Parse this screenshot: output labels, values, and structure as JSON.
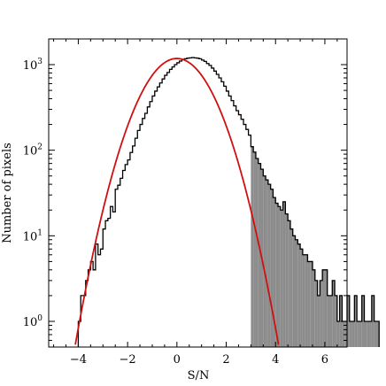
{
  "chart_data": {
    "type": "histogram",
    "xlabel": "S/N",
    "ylabel": "Number of pixels",
    "xlim": [
      -5.2,
      6.9
    ],
    "ylim_log10": [
      -0.3,
      3.3
    ],
    "yscale": "log",
    "x_ticks": [
      -4,
      -2,
      0,
      2,
      4,
      6
    ],
    "x_tick_labels": [
      "−4",
      "−2",
      "0",
      "2",
      "4",
      "6"
    ],
    "y_ticks": [
      {
        "base": "10",
        "exp": "0",
        "log10": 0
      },
      {
        "base": "10",
        "exp": "1",
        "log10": 1
      },
      {
        "base": "10",
        "exp": "2",
        "log10": 2
      },
      {
        "base": "10",
        "exp": "3",
        "log10": 3
      }
    ],
    "histogram": {
      "bin_start": -4.0,
      "bin_width": 0.1,
      "counts": [
        1,
        2,
        2,
        3,
        4,
        5,
        4,
        8,
        6,
        7,
        12,
        15,
        16,
        22,
        19,
        35,
        39,
        47,
        58,
        68,
        77,
        94,
        112,
        138,
        170,
        200,
        235,
        270,
        320,
        370,
        430,
        490,
        550,
        610,
        680,
        750,
        810,
        880,
        940,
        1000,
        1050,
        1100,
        1140,
        1170,
        1190,
        1200,
        1210,
        1200,
        1190,
        1170,
        1130,
        1090,
        1030,
        980,
        910,
        840,
        770,
        700,
        630,
        560,
        490,
        430,
        380,
        330,
        290,
        260,
        230,
        200,
        175,
        150,
        110,
        95,
        80,
        70,
        60,
        50,
        45,
        40,
        35,
        28,
        24,
        22,
        20,
        25,
        18,
        15,
        12,
        10,
        9,
        8,
        7,
        6,
        6,
        5,
        5,
        4,
        3,
        2,
        3,
        4,
        4,
        2,
        2,
        3,
        2,
        1,
        2,
        1,
        1,
        2,
        1,
        1,
        2,
        1,
        1,
        2,
        1,
        1,
        1,
        2,
        1,
        1
      ],
      "shaded_from": 3.0,
      "shade_color": "#8c8c8c",
      "line_color": "#000000"
    },
    "gaussian_fit": {
      "amplitude": 1180,
      "mean": 0.0,
      "sigma": 1.05,
      "x_range": [
        -4.2,
        4.2
      ],
      "color": "#d01010"
    }
  }
}
